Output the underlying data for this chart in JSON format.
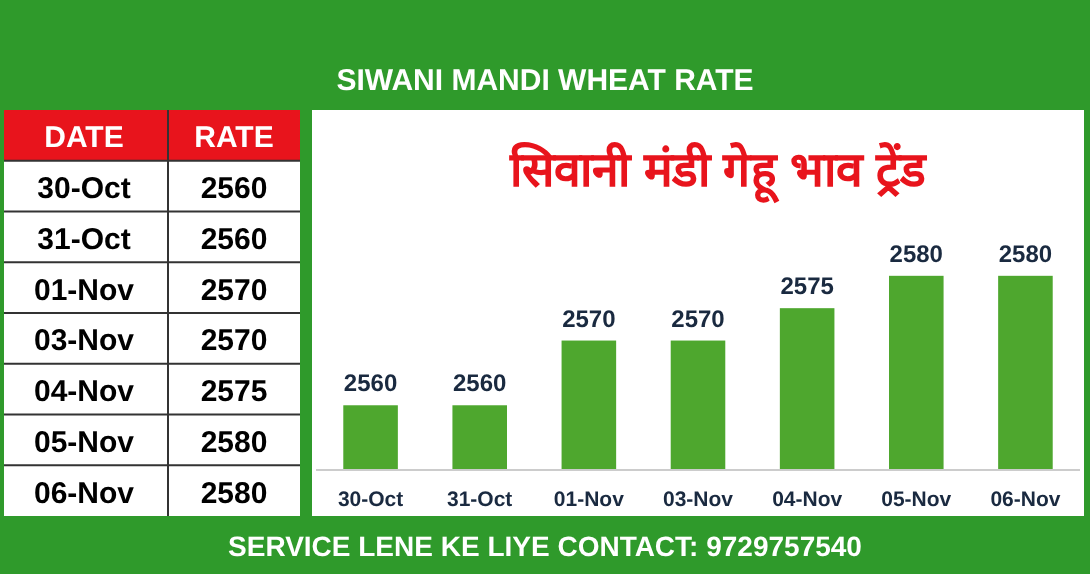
{
  "chart_data": [
    {
      "type": "other",
      "categories": [
        "30-Oct",
        "31-Oct",
        "01-Nov",
        "03-Nov",
        "04-Nov",
        "05-Nov",
        "06-Nov"
      ],
      "values": [
        2560,
        2560,
        2570,
        2570,
        2575,
        2580,
        2580
      ],
      "data_labels": true,
      "annotations": [
        "DATE",
        "RATE"
      ]
    },
    {
      "type": "bar",
      "title": "SIWANI MANDI WHEAT RATE",
      "subtitle": "सिवानी मंडी गेहू भाव  ट्रेंड",
      "categories": [
        "30-Oct",
        "31-Oct",
        "01-Nov",
        "03-Nov",
        "04-Nov",
        "05-Nov",
        "06-Nov"
      ],
      "values": [
        2560,
        2560,
        2570,
        2570,
        2575,
        2580,
        2580
      ],
      "color": "#4ea72e",
      "ylim": [
        2550,
        2605
      ],
      "data_labels": true,
      "annotations": [
        "SERVICE LENE KE LIYE CONTACT: 9729757540"
      ]
    }
  ]
}
